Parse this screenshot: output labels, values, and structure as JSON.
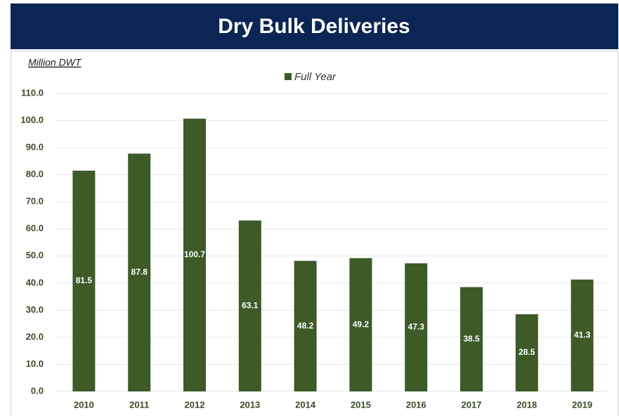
{
  "chart_data": {
    "type": "bar",
    "title": "Dry Bulk Deliveries",
    "y_label": "Million DWT",
    "categories": [
      "2010",
      "2011",
      "2012",
      "2013",
      "2014",
      "2015",
      "2016",
      "2017",
      "2018",
      "2019"
    ],
    "series": [
      {
        "name": "Full Year",
        "color": "#3d5a27",
        "values": [
          81.5,
          87.8,
          100.7,
          63.1,
          48.2,
          49.2,
          47.3,
          38.5,
          28.5,
          41.3
        ]
      }
    ],
    "ylim": [
      0,
      110
    ],
    "yticks": [
      {
        "value": 0,
        "label": "0.0"
      },
      {
        "value": 10,
        "label": "10.0"
      },
      {
        "value": 20,
        "label": "20.0"
      },
      {
        "value": 30,
        "label": "30.0"
      },
      {
        "value": 40,
        "label": "40.0"
      },
      {
        "value": 50,
        "label": "50.0"
      },
      {
        "value": 60,
        "label": "60.0"
      },
      {
        "value": 70,
        "label": "70.0"
      },
      {
        "value": 80,
        "label": "80.0"
      },
      {
        "value": 90,
        "label": "90.0"
      },
      {
        "value": 100,
        "label": "100.0"
      },
      {
        "value": 110,
        "label": "110.0"
      }
    ],
    "grid": true,
    "legend": "top"
  }
}
